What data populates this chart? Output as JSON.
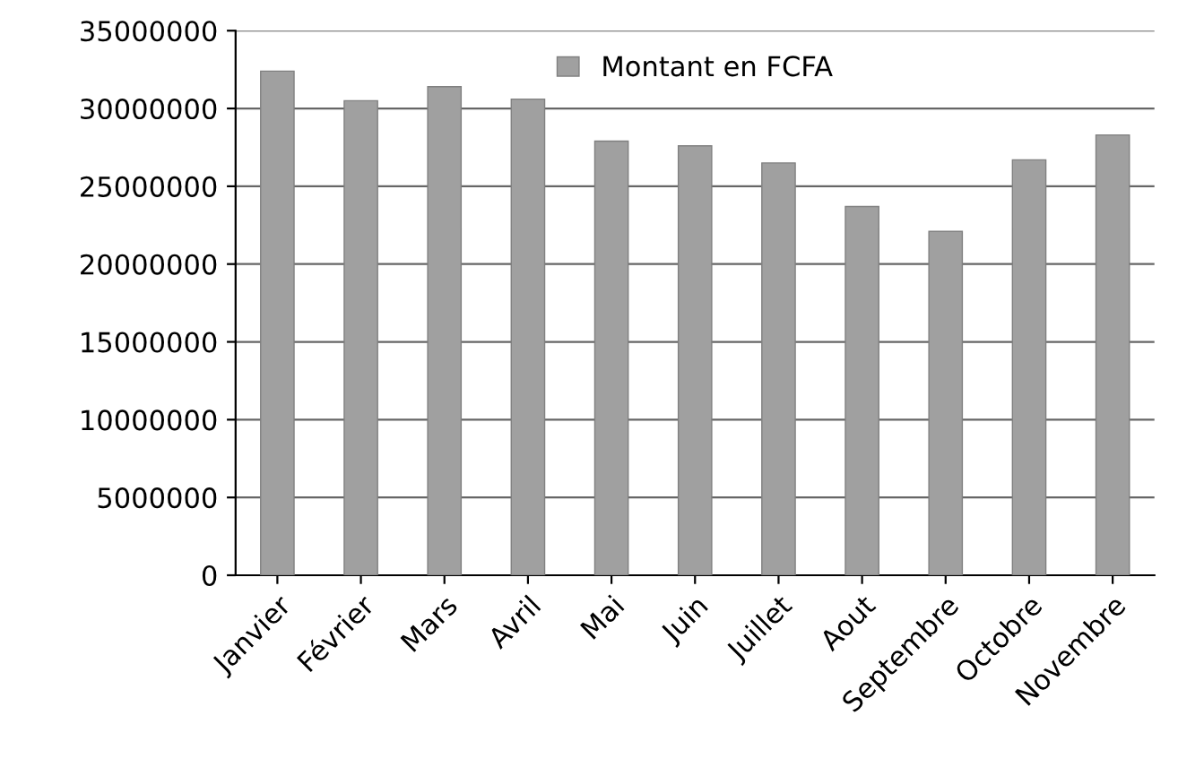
{
  "chart_data": {
    "type": "bar",
    "categories": [
      "Janvier",
      "Février",
      "Mars",
      "Avril",
      "Mai",
      "Juin",
      "Juillet",
      "Aout",
      "Septembre",
      "Octobre",
      "Novembre"
    ],
    "series": [
      {
        "name": "Montant en FCFA",
        "color": "#a0a0a0",
        "values": [
          32400000,
          30500000,
          31400000,
          30600000,
          27900000,
          27600000,
          26500000,
          23700000,
          22100000,
          26700000,
          28300000
        ]
      }
    ],
    "ylim": [
      0,
      35000000
    ],
    "yticks": [
      0,
      5000000,
      10000000,
      15000000,
      20000000,
      25000000,
      30000000,
      35000000
    ],
    "grid": "y",
    "legend": "top"
  }
}
